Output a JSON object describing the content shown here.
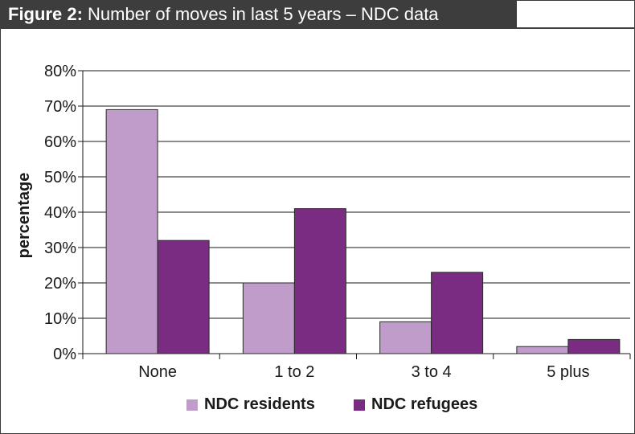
{
  "figure": {
    "label": "Figure 2:",
    "title": "Number of moves in last 5 years – NDC data"
  },
  "chart_data": {
    "type": "bar",
    "categories": [
      "None",
      "1 to 2",
      "3 to 4",
      "5 plus"
    ],
    "series": [
      {
        "name": "NDC residents",
        "color": "#bf9cc9",
        "values": [
          69,
          20,
          9,
          2
        ]
      },
      {
        "name": "NDC refugees",
        "color": "#7a2c83",
        "values": [
          32,
          41,
          23,
          4
        ]
      }
    ],
    "xlabel": "",
    "ylabel": "percentage",
    "ylim": [
      0,
      80
    ],
    "yticks": [
      "0%",
      "10%",
      "20%",
      "30%",
      "40%",
      "50%",
      "60%",
      "70%",
      "80%"
    ],
    "grid": true,
    "legend_position": "bottom"
  }
}
